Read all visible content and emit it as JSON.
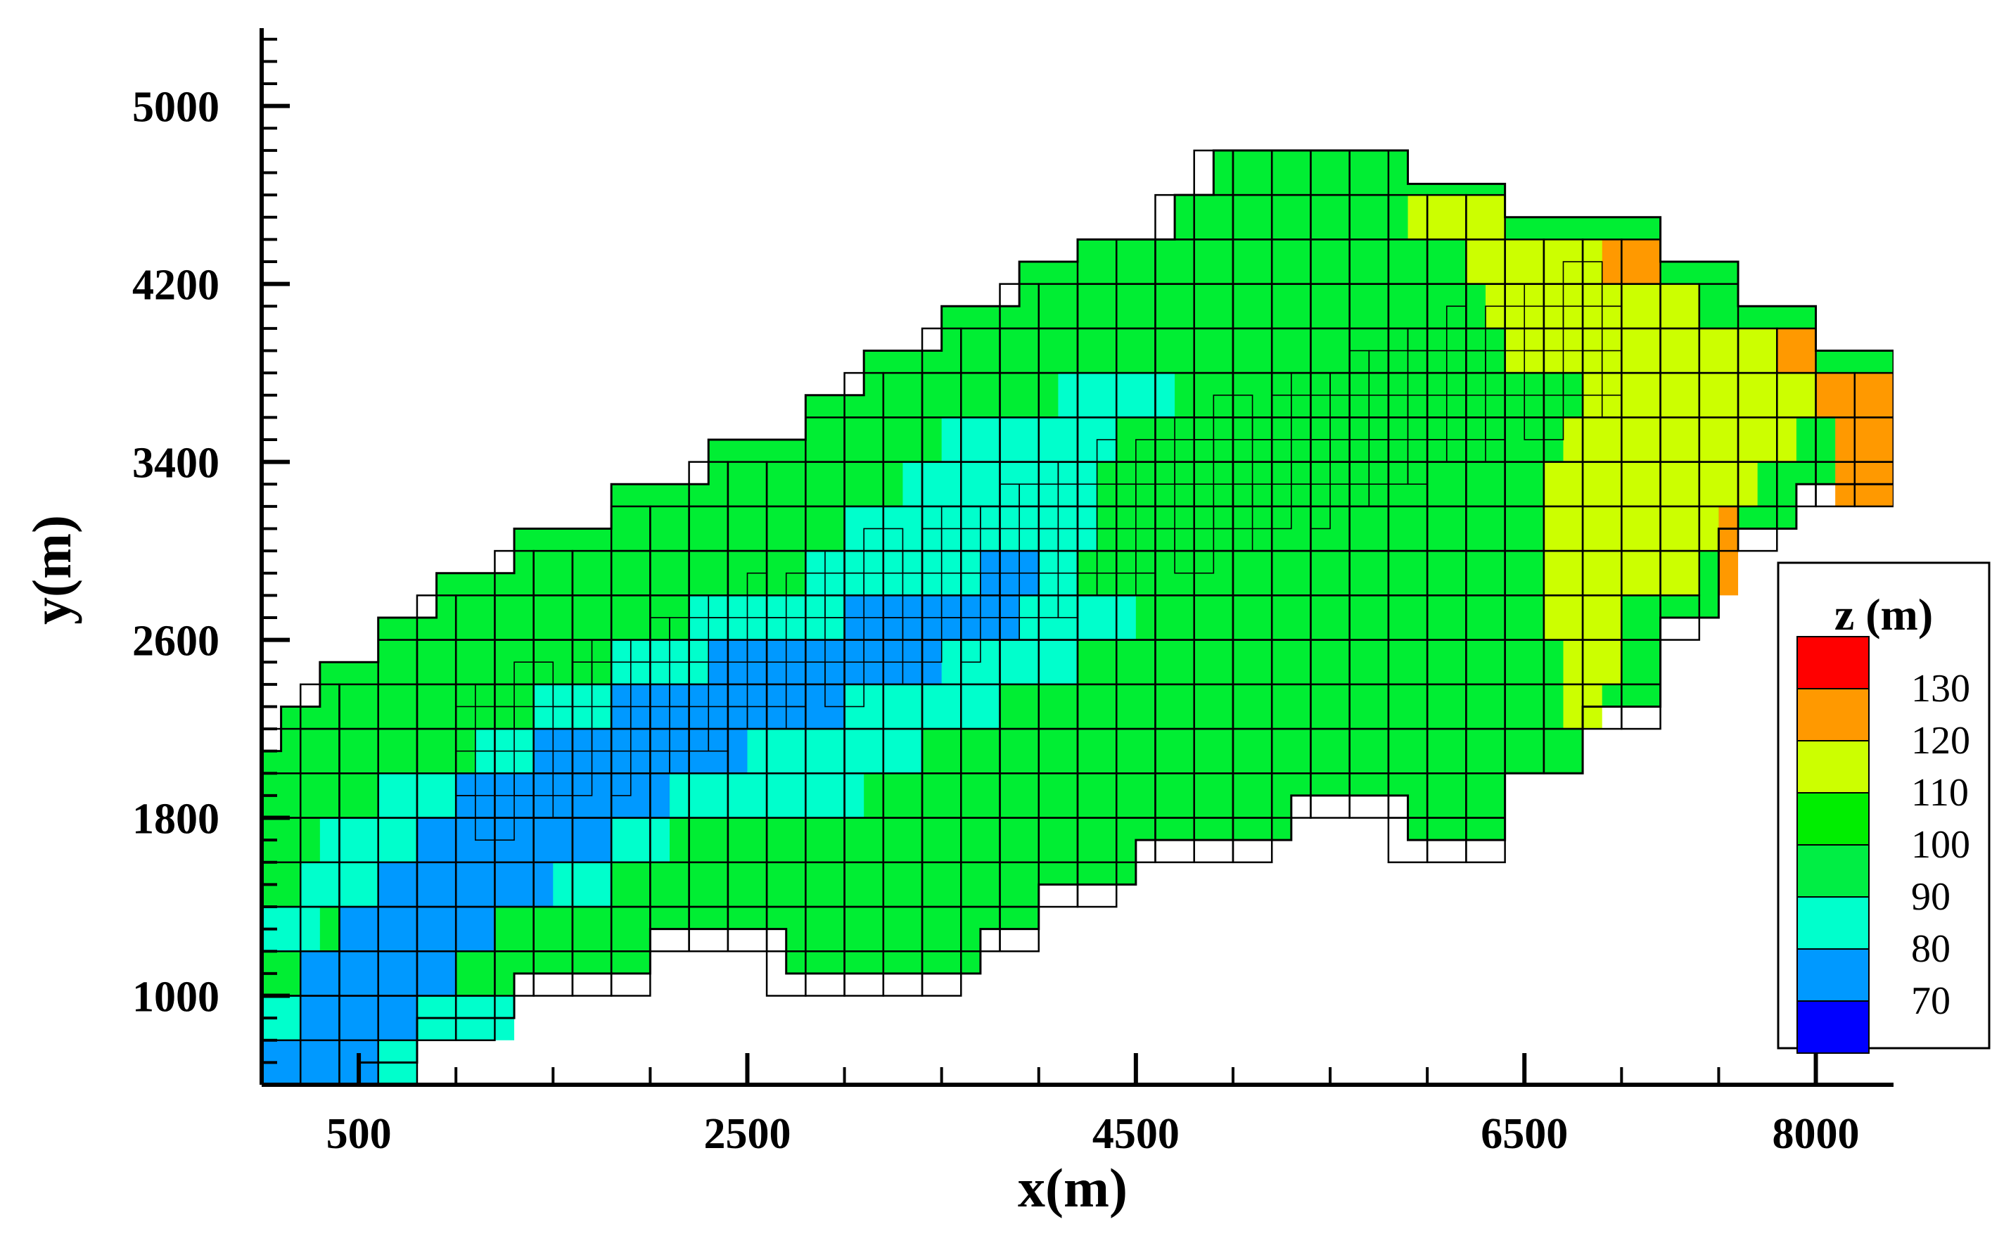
{
  "chart_data": {
    "type": "heatmap",
    "title": "",
    "xlabel": "x(m)",
    "ylabel": "y(m)",
    "xlim": [
      0,
      8400
    ],
    "ylim": [
      600,
      5350
    ],
    "x_ticks": [
      500,
      2500,
      4500,
      6500,
      8000
    ],
    "y_ticks": [
      1000,
      1800,
      2600,
      3400,
      4200,
      5000
    ],
    "legend": {
      "title": "z (m)",
      "placement": "right",
      "levels": [
        {
          "label": "130",
          "color": "#ff0000"
        },
        {
          "label": "120",
          "color": "#ff9900"
        },
        {
          "label": "110",
          "color": "#ccff00"
        },
        {
          "label": "100",
          "color": "#00ee00"
        },
        {
          "label": "90",
          "color": "#00ee44"
        },
        {
          "label": "80",
          "color": "#00ffcc"
        },
        {
          "label": "70",
          "color": "#0099ff"
        },
        {
          "label": "",
          "color": "#0000ff"
        }
      ]
    },
    "grid_cell_m": 100,
    "regions": [
      {
        "z_band": "80-90",
        "color": "#00ffcc",
        "rows": [
          [
            700,
            0,
            800
          ],
          [
            900,
            0,
            1300
          ],
          [
            1300,
            0,
            300
          ],
          [
            1500,
            200,
            1800
          ],
          [
            1700,
            300,
            2100
          ],
          [
            1900,
            600,
            2600
          ],
          [
            2100,
            1100,
            3200
          ],
          [
            2300,
            1400,
            3800
          ],
          [
            2500,
            1800,
            4200
          ],
          [
            2700,
            2200,
            4500
          ],
          [
            2900,
            2800,
            4200
          ],
          [
            3100,
            3000,
            4300
          ],
          [
            3300,
            3300,
            4300
          ],
          [
            3500,
            3500,
            4400
          ],
          [
            3700,
            4100,
            4700
          ],
          [
            2300,
            2600,
            3700
          ],
          [
            2100,
            2600,
            3400
          ],
          [
            1900,
            2600,
            3100
          ]
        ]
      },
      {
        "z_band": "70-80",
        "color": "#0099ff",
        "rows": [
          [
            700,
            0,
            600
          ],
          [
            900,
            200,
            800
          ],
          [
            1100,
            200,
            1000
          ],
          [
            1300,
            400,
            1200
          ],
          [
            1500,
            600,
            1500
          ],
          [
            1700,
            800,
            1800
          ],
          [
            1900,
            1000,
            2100
          ],
          [
            2100,
            1400,
            2500
          ],
          [
            2300,
            1800,
            3000
          ],
          [
            2500,
            2300,
            3500
          ],
          [
            2700,
            3000,
            3900
          ],
          [
            2900,
            3700,
            4000
          ]
        ]
      },
      {
        "z_band": "110-120",
        "color": "#ccff00",
        "rows": [
          [
            4500,
            5900,
            6400
          ],
          [
            4300,
            6200,
            7000
          ],
          [
            4100,
            6300,
            7400
          ],
          [
            3900,
            6400,
            8000
          ],
          [
            3700,
            6800,
            8100
          ],
          [
            3500,
            6700,
            7900
          ],
          [
            3300,
            6600,
            7700
          ],
          [
            3100,
            6600,
            7500
          ],
          [
            2900,
            6600,
            7400
          ],
          [
            2700,
            6600,
            7000
          ],
          [
            2500,
            6700,
            7000
          ],
          [
            2300,
            6700,
            6900
          ]
        ]
      },
      {
        "z_band": "120-130",
        "color": "#ff9900",
        "rows": [
          [
            4300,
            6900,
            7200
          ],
          [
            3900,
            7800,
            8000
          ],
          [
            3700,
            8000,
            8400
          ],
          [
            3500,
            8100,
            8400
          ],
          [
            3300,
            8100,
            8400
          ],
          [
            3100,
            7500,
            7600
          ],
          [
            2900,
            7500,
            7600
          ]
        ]
      }
    ]
  }
}
